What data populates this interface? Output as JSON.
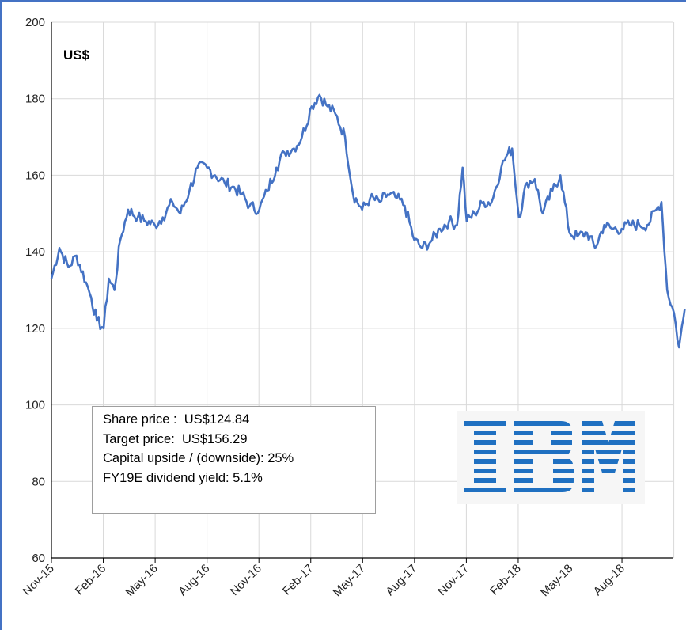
{
  "colors": {
    "line": "#4472c4",
    "frame": "#4472c4",
    "grid": "#d9d9d9",
    "logo_blue": "#1f70c1",
    "logo_background": "#f6f6f6"
  },
  "chart_data": {
    "type": "line",
    "title": "",
    "xlabel": "",
    "ylabel": "US$",
    "ylim": [
      60,
      200
    ],
    "yticks": [
      "200",
      "180",
      "160",
      "140",
      "120",
      "100",
      "80",
      "60"
    ],
    "xticks": [
      "Nov-15",
      "Feb-16",
      "May-16",
      "Aug-16",
      "Nov-16",
      "Feb-17",
      "May-17",
      "Aug-17",
      "Nov-17",
      "Feb-18",
      "May-18",
      "Aug-18"
    ],
    "grid": true,
    "series": [
      {
        "x": [
          "2015-11-01",
          "2015-11-15",
          "2015-12-01",
          "2015-12-15",
          "2016-01-01",
          "2016-01-10",
          "2016-01-20",
          "2016-02-01",
          "2016-02-10",
          "2016-02-20",
          "2016-03-01",
          "2016-03-15",
          "2016-04-01",
          "2016-04-15",
          "2016-05-01",
          "2016-05-15",
          "2016-06-01",
          "2016-06-15",
          "2016-07-01",
          "2016-07-15",
          "2016-08-01",
          "2016-08-15",
          "2016-09-01",
          "2016-09-15",
          "2016-10-01",
          "2016-10-15",
          "2016-11-01",
          "2016-11-15",
          "2016-12-01",
          "2016-12-15",
          "2017-01-01",
          "2017-01-15",
          "2017-02-01",
          "2017-02-15",
          "2017-03-01",
          "2017-03-15",
          "2017-04-01",
          "2017-04-15",
          "2017-05-01",
          "2017-05-15",
          "2017-06-01",
          "2017-06-15",
          "2017-07-01",
          "2017-07-15",
          "2017-08-01",
          "2017-08-15",
          "2017-09-01",
          "2017-09-15",
          "2017-10-01",
          "2017-10-15",
          "2017-10-25",
          "2017-11-01",
          "2017-11-15",
          "2017-12-01",
          "2017-12-15",
          "2018-01-01",
          "2018-01-10",
          "2018-01-20",
          "2018-02-01",
          "2018-02-15",
          "2018-03-01",
          "2018-03-15",
          "2018-04-01",
          "2018-04-15",
          "2018-05-01",
          "2018-05-15",
          "2018-06-01",
          "2018-06-15",
          "2018-07-01",
          "2018-07-15",
          "2018-08-01",
          "2018-08-15",
          "2018-09-01",
          "2018-09-15",
          "2018-10-01",
          "2018-10-10",
          "2018-10-20",
          "2018-11-01",
          "2018-11-10",
          "2018-11-20"
        ],
        "y": [
          133,
          141,
          136,
          139,
          132,
          128,
          122,
          120,
          133,
          130,
          143,
          151,
          149,
          148,
          147,
          149,
          153,
          150,
          156,
          162,
          162,
          160,
          158,
          157,
          155,
          152,
          151,
          156,
          162,
          166,
          167,
          170,
          178,
          181,
          178,
          176,
          170,
          155,
          151,
          154,
          153,
          155,
          154,
          152,
          143,
          141,
          143,
          146,
          148,
          147,
          162,
          148,
          150,
          153,
          153,
          162,
          165,
          167,
          149,
          158,
          159,
          150,
          156,
          160,
          145,
          144,
          145,
          141,
          147,
          146,
          146,
          147,
          147,
          147,
          151,
          153,
          130,
          124,
          115,
          125
        ]
      }
    ]
  },
  "infobox": {
    "line1": "Share price :  US$124.84",
    "line2": "Target price:  US$156.29",
    "line3": "Capital upside / (downside): 25%",
    "line4": "FY19E dividend yield: 5.1%"
  },
  "logo": {
    "text": "IBM"
  }
}
